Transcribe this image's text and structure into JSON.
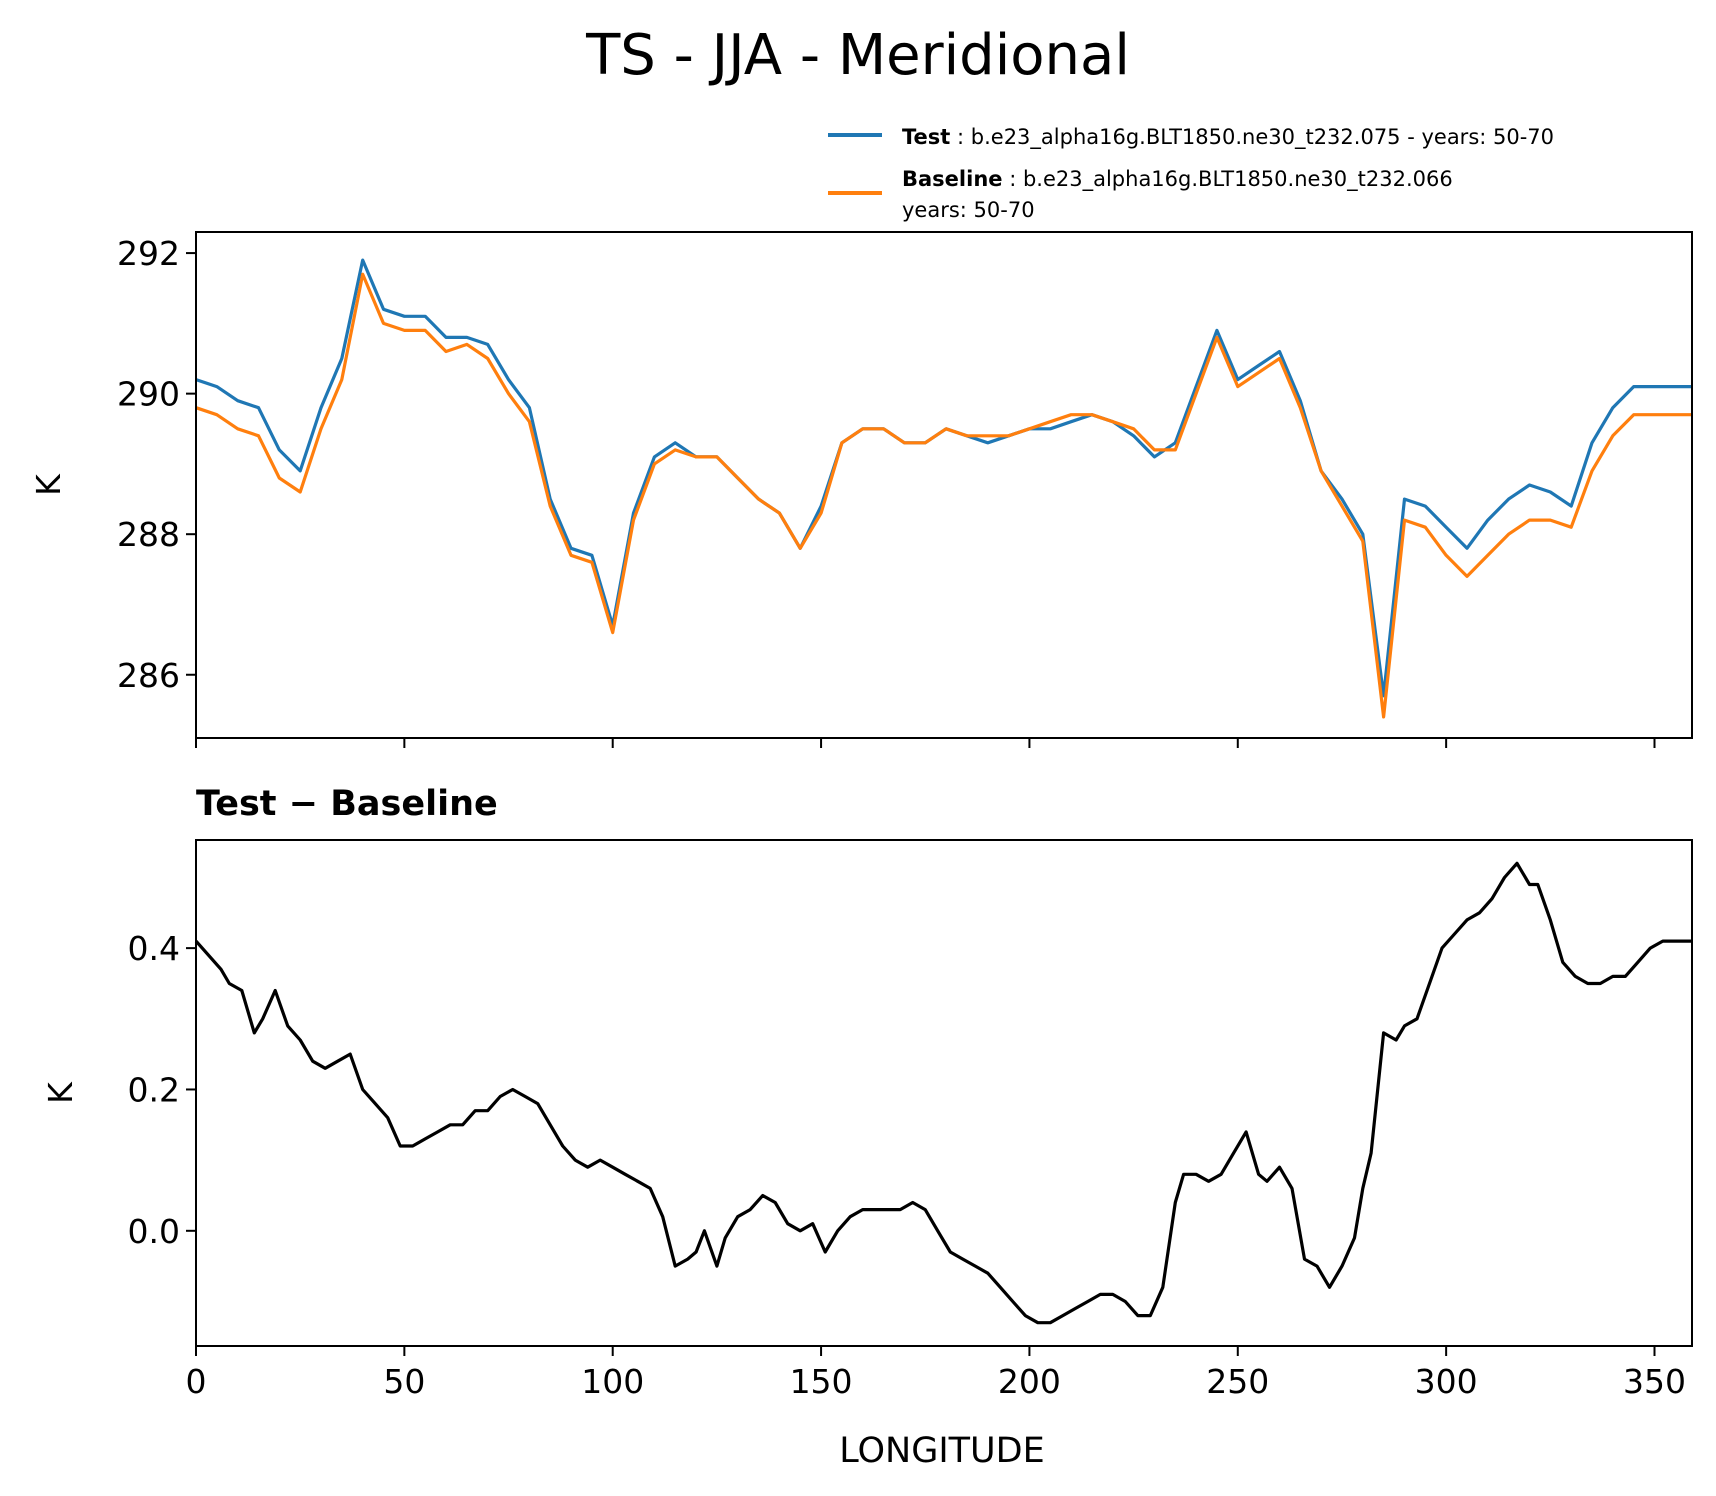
{
  "title": "TS - JJA - Meridional",
  "colors": {
    "test": "#1f77b4",
    "baseline": "#ff7f0e",
    "diff": "#000000"
  },
  "legend": {
    "test_label": "Test",
    "test_desc": ": b.e23_alpha16g.BLT1850.ne30_t232.075 - years: 50-70",
    "baseline_label": "Baseline",
    "baseline_desc": ": b.e23_alpha16g.BLT1850.ne30_t232.066",
    "baseline_desc2": "years: 50-70"
  },
  "chart_data": [
    {
      "type": "line",
      "title": "",
      "xlabel": "",
      "ylabel": "K",
      "xlim": [
        0,
        359
      ],
      "ylim": [
        285.1,
        292.3
      ],
      "yticks": [
        "286",
        "288",
        "290",
        "292"
      ],
      "x": [
        0,
        5,
        10,
        15,
        20,
        25,
        30,
        35,
        40,
        45,
        50,
        55,
        60,
        65,
        70,
        75,
        80,
        85,
        90,
        95,
        100,
        105,
        110,
        115,
        120,
        125,
        130,
        135,
        140,
        145,
        150,
        155,
        160,
        165,
        170,
        175,
        180,
        185,
        190,
        195,
        200,
        205,
        210,
        215,
        220,
        225,
        230,
        235,
        240,
        245,
        250,
        255,
        260,
        265,
        270,
        275,
        280,
        285,
        290,
        295,
        300,
        305,
        310,
        315,
        320,
        325,
        330,
        335,
        340,
        345,
        350,
        355,
        359
      ],
      "series": [
        {
          "name": "Test",
          "values": [
            290.2,
            290.1,
            289.9,
            289.8,
            289.2,
            288.9,
            289.8,
            290.5,
            291.9,
            291.2,
            291.1,
            291.1,
            290.8,
            290.8,
            290.7,
            290.2,
            289.8,
            288.5,
            287.8,
            287.7,
            286.7,
            288.3,
            289.1,
            289.3,
            289.1,
            289.1,
            288.8,
            288.5,
            288.3,
            287.8,
            288.4,
            289.3,
            289.5,
            289.5,
            289.3,
            289.3,
            289.5,
            289.4,
            289.3,
            289.4,
            289.5,
            289.5,
            289.6,
            289.7,
            289.6,
            289.4,
            289.1,
            289.3,
            290.1,
            290.9,
            290.2,
            290.4,
            290.6,
            289.9,
            288.9,
            288.5,
            288.0,
            285.7,
            288.5,
            288.4,
            288.1,
            287.8,
            288.2,
            288.5,
            288.7,
            288.6,
            288.4,
            289.3,
            289.8,
            290.1,
            290.1,
            290.1,
            290.1
          ]
        },
        {
          "name": "Baseline",
          "values": [
            289.8,
            289.7,
            289.5,
            289.4,
            288.8,
            288.6,
            289.5,
            290.2,
            291.7,
            291.0,
            290.9,
            290.9,
            290.6,
            290.7,
            290.5,
            290.0,
            289.6,
            288.4,
            287.7,
            287.6,
            286.6,
            288.2,
            289.0,
            289.2,
            289.1,
            289.1,
            288.8,
            288.5,
            288.3,
            287.8,
            288.3,
            289.3,
            289.5,
            289.5,
            289.3,
            289.3,
            289.5,
            289.4,
            289.4,
            289.4,
            289.5,
            289.6,
            289.7,
            289.7,
            289.6,
            289.5,
            289.2,
            289.2,
            290.0,
            290.8,
            290.1,
            290.3,
            290.5,
            289.8,
            288.9,
            288.4,
            287.9,
            285.4,
            288.2,
            288.1,
            287.7,
            287.4,
            287.7,
            288.0,
            288.2,
            288.2,
            288.1,
            288.9,
            289.4,
            289.7,
            289.7,
            289.7,
            289.7
          ]
        }
      ]
    },
    {
      "type": "line",
      "title": "Test − Baseline",
      "xlabel": "LONGITUDE",
      "ylabel": "K",
      "xlim": [
        0,
        359
      ],
      "ylim": [
        -0.163,
        0.553
      ],
      "xticks": [
        "0",
        "50",
        "100",
        "150",
        "200",
        "250",
        "300",
        "350"
      ],
      "yticks": [
        "0.0",
        "0.2",
        "0.4"
      ],
      "x": [
        0,
        3,
        6,
        8,
        11,
        14,
        16,
        19,
        22,
        25,
        28,
        31,
        34,
        37,
        40,
        43,
        46,
        49,
        52,
        55,
        58,
        61,
        64,
        67,
        70,
        73,
        76,
        79,
        82,
        85,
        88,
        91,
        94,
        97,
        100,
        103,
        106,
        109,
        112,
        115,
        118,
        120,
        122,
        125,
        127,
        130,
        133,
        136,
        139,
        142,
        145,
        148,
        151,
        154,
        157,
        160,
        163,
        166,
        169,
        172,
        175,
        178,
        181,
        184,
        187,
        190,
        193,
        196,
        199,
        202,
        205,
        208,
        211,
        214,
        217,
        220,
        223,
        226,
        229,
        232,
        235,
        237,
        240,
        243,
        246,
        249,
        252,
        255,
        257,
        260,
        263,
        266,
        269,
        272,
        275,
        278,
        280,
        282,
        285,
        288,
        290,
        293,
        296,
        299,
        302,
        305,
        308,
        311,
        314,
        317,
        320,
        322,
        325,
        328,
        331,
        334,
        337,
        340,
        343,
        346,
        349,
        352,
        355,
        359
      ],
      "series": [
        {
          "name": "Test − Baseline",
          "values": [
            0.41,
            0.39,
            0.37,
            0.35,
            0.34,
            0.28,
            0.3,
            0.34,
            0.29,
            0.27,
            0.24,
            0.23,
            0.24,
            0.25,
            0.2,
            0.18,
            0.16,
            0.12,
            0.12,
            0.13,
            0.14,
            0.15,
            0.15,
            0.17,
            0.17,
            0.19,
            0.2,
            0.19,
            0.18,
            0.15,
            0.12,
            0.1,
            0.09,
            0.1,
            0.09,
            0.08,
            0.07,
            0.06,
            0.02,
            -0.05,
            -0.04,
            -0.03,
            0.0,
            -0.05,
            -0.01,
            0.02,
            0.03,
            0.05,
            0.04,
            0.01,
            0.0,
            0.01,
            -0.03,
            0.0,
            0.02,
            0.03,
            0.03,
            0.03,
            0.03,
            0.04,
            0.03,
            0.0,
            -0.03,
            -0.04,
            -0.05,
            -0.06,
            -0.08,
            -0.1,
            -0.12,
            -0.13,
            -0.13,
            -0.12,
            -0.11,
            -0.1,
            -0.09,
            -0.09,
            -0.1,
            -0.12,
            -0.12,
            -0.08,
            0.04,
            0.08,
            0.08,
            0.07,
            0.08,
            0.11,
            0.14,
            0.08,
            0.07,
            0.09,
            0.06,
            -0.04,
            -0.05,
            -0.08,
            -0.05,
            -0.01,
            0.06,
            0.11,
            0.28,
            0.27,
            0.29,
            0.3,
            0.35,
            0.4,
            0.42,
            0.44,
            0.45,
            0.47,
            0.5,
            0.52,
            0.49,
            0.49,
            0.44,
            0.38,
            0.36,
            0.35,
            0.35,
            0.36,
            0.36,
            0.38,
            0.4,
            0.41,
            0.41,
            0.41
          ]
        }
      ]
    }
  ]
}
